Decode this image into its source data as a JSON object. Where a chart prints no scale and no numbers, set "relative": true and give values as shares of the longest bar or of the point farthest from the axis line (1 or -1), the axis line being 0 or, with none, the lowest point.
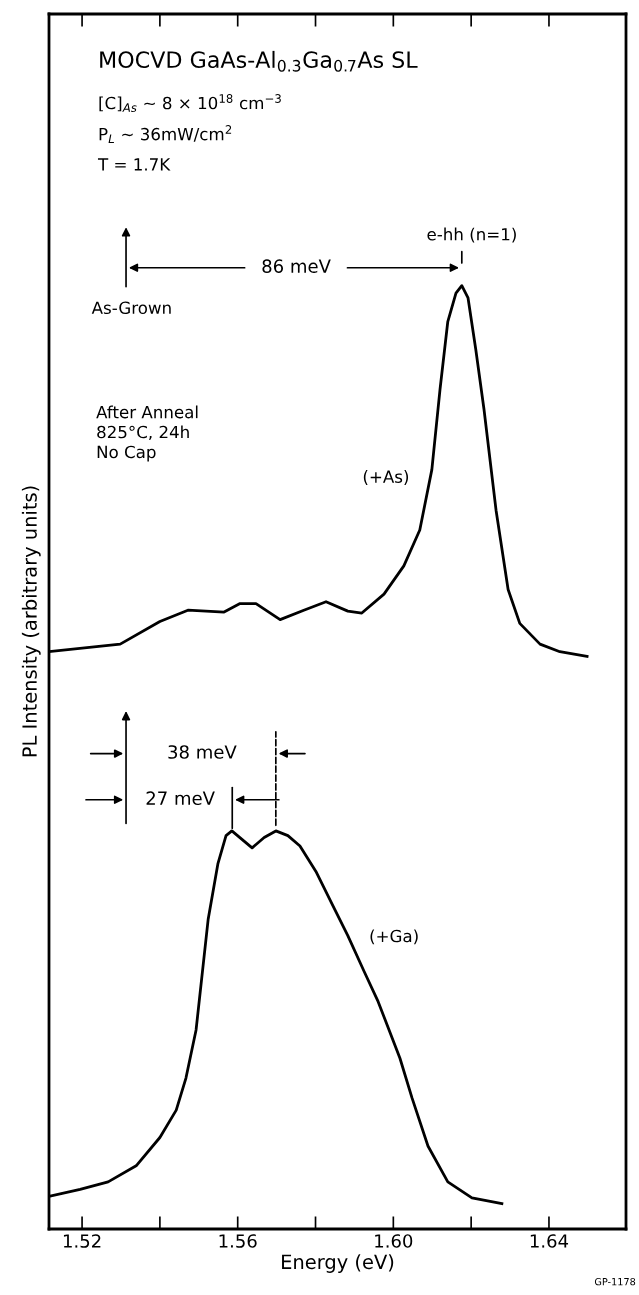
{
  "chart_data": {
    "type": "line",
    "title": "MOCVD GaAs-Al$_{0.3}$Ga$_{0.7}$As SL",
    "xlabel": "Energy (eV)",
    "ylabel": "PL Intensity (arbitrary units)",
    "relative": true,
    "tick_labels": "x",
    "xlim": [
      1.5115,
      1.6598
    ],
    "xticks": [
      1.52,
      {
        "value": 1.54,
        "label": null
      },
      1.56,
      {
        "value": 1.58,
        "label": null
      },
      {
        "value": 1.6,
        "label": "1.60"
      },
      {
        "value": 1.62,
        "label": null
      },
      1.64
    ],
    "series": [
      {
        "name": "(+As)",
        "color": "#000000",
        "x": [
          1.5115,
          1.5298,
          1.54,
          1.5472,
          1.5565,
          1.5606,
          1.5647,
          1.5709,
          1.577,
          1.5827,
          1.5883,
          1.5919,
          1.5976,
          1.6027,
          1.6068,
          1.6099,
          1.612,
          1.614,
          1.6161,
          1.6176,
          1.6192,
          1.6212,
          1.6233,
          1.6264,
          1.6295,
          1.6325,
          1.6377,
          1.6428,
          1.6498
        ],
        "values": [
          0.612,
          0.62,
          0.644,
          0.656,
          0.654,
          0.663,
          0.663,
          0.646,
          0.656,
          0.665,
          0.655,
          0.653,
          0.673,
          0.703,
          0.741,
          0.805,
          0.89,
          0.962,
          0.992,
          1.0,
          0.987,
          0.932,
          0.869,
          0.762,
          0.678,
          0.642,
          0.62,
          0.612,
          0.607
        ]
      },
      {
        "name": "(+Ga)",
        "color": "#000000",
        "x": [
          1.5118,
          1.5195,
          1.5267,
          1.5339,
          1.54,
          1.5442,
          1.5467,
          1.5493,
          1.5524,
          1.5549,
          1.557,
          1.5585,
          1.5611,
          1.5637,
          1.5668,
          1.5698,
          1.5729,
          1.576,
          1.5801,
          1.5842,
          1.5883,
          1.5925,
          1.5961,
          1.6017,
          1.6048,
          1.6089,
          1.614,
          1.6202,
          1.6279
        ],
        "values": [
          0.035,
          0.042,
          0.05,
          0.067,
          0.097,
          0.126,
          0.16,
          0.211,
          0.328,
          0.387,
          0.417,
          0.422,
          0.413,
          0.404,
          0.415,
          0.422,
          0.417,
          0.406,
          0.379,
          0.345,
          0.311,
          0.273,
          0.241,
          0.181,
          0.139,
          0.088,
          0.05,
          0.033,
          0.027
        ]
      }
    ],
    "annotations": [
      "[C]$_{As}$ ~ 8 × 10$^{18}$ cm$^{−3}$",
      "P$_{L}$ ~ 36mW/cm$^{2}$",
      "T = 1.7K",
      "As-Grown",
      "86 meV",
      {
        "text": "e-hh (n=1)",
        "x": 1.6176,
        "y": 1.0
      },
      "After Anneal\n825°C, 24h\nNo Cap",
      "38 meV",
      "27 meV",
      "GP-1178"
    ]
  }
}
